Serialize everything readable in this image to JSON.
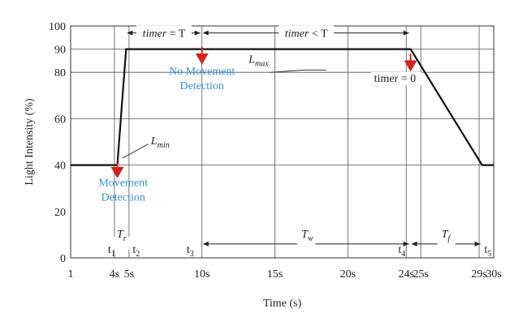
{
  "chart_data": {
    "type": "line",
    "title": "",
    "xlabel": "Time (s)",
    "ylabel": "Light Intensity (%)",
    "xlim": [
      1,
      30
    ],
    "ylim": [
      0,
      100
    ],
    "x_ticks": [
      {
        "value": 1,
        "label": "1"
      },
      {
        "value": 4,
        "label": "4s"
      },
      {
        "value": 5,
        "label": "5s"
      },
      {
        "value": 10,
        "label": "10s"
      },
      {
        "value": 15,
        "label": "15s"
      },
      {
        "value": 20,
        "label": "20s"
      },
      {
        "value": 24,
        "label": "24s"
      },
      {
        "value": 25,
        "label": "25s"
      },
      {
        "value": 29,
        "label": "29s"
      },
      {
        "value": 30,
        "label": "30s"
      }
    ],
    "y_ticks": [
      {
        "value": 0,
        "label": "0"
      },
      {
        "value": 20,
        "label": "20"
      },
      {
        "value": 40,
        "label": "40"
      },
      {
        "value": 60,
        "label": "60"
      },
      {
        "value": 80,
        "label": "80"
      },
      {
        "value": 90,
        "label": "90"
      },
      {
        "value": 100,
        "label": "100"
      }
    ],
    "grid_x": [
      4,
      5,
      10,
      15,
      20,
      24,
      25,
      29,
      30
    ],
    "grid_y": [
      40,
      60,
      80,
      90,
      100
    ],
    "series": [
      {
        "x": [
          1,
          4.2,
          4.8,
          24.3,
          29.2,
          30
        ],
        "y": [
          40,
          40,
          90,
          90,
          40,
          40
        ]
      }
    ],
    "time_markers": [
      {
        "x": 3.8,
        "label": "t",
        "sub": "1"
      },
      {
        "x": 5.5,
        "label": "t",
        "sub": "2"
      },
      {
        "x": 9.2,
        "label": "t",
        "sub": "3"
      },
      {
        "x": 23.7,
        "label": "t",
        "sub": "4"
      },
      {
        "x": 29.6,
        "label": "t",
        "sub": "5"
      }
    ],
    "intervals": [
      {
        "from": 4.2,
        "to": 4.8,
        "y": 6,
        "label": "T",
        "sub": "r"
      },
      {
        "from": 10,
        "to": 24.3,
        "y": 6,
        "label": "T",
        "sub": "w"
      },
      {
        "from": 24.3,
        "to": 29.2,
        "y": 6,
        "label": "T",
        "sub": "f"
      },
      {
        "from": 4.8,
        "to": 10,
        "y": 97,
        "label": "timer = T"
      },
      {
        "from": 10,
        "to": 24.3,
        "y": 97,
        "label": "timer < T"
      }
    ],
    "annotations": {
      "lmax": {
        "label": "L",
        "sub": "max",
        "x": 13.2,
        "y": 82
      },
      "lmin": {
        "label": "L",
        "sub": "min",
        "x": 6.5,
        "y": 50
      },
      "no_movement": [
        "No Movement",
        "Detection"
      ],
      "movement": [
        "Movement",
        "Detection"
      ],
      "timer_zero": "timer = 0"
    },
    "colors": {
      "line": "#111111",
      "arrow": "#d42020",
      "blue_text": "#3a8fd0",
      "grid": "#555555"
    }
  }
}
